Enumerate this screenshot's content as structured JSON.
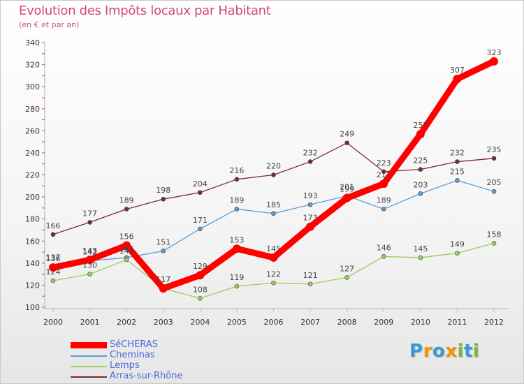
{
  "header": {
    "title": "Evolution des Impôts locaux par Habitant",
    "subtitle": "(en € et par an)"
  },
  "logo": {
    "letters": [
      "P",
      "r",
      "o",
      "x",
      "i",
      "t",
      "i"
    ],
    "colors": [
      "#3a9ad9",
      "#f29400",
      "#3a9ad9",
      "#f29400",
      "#7cb82f",
      "#3a9ad9",
      "#7cb82f"
    ]
  },
  "chart_data": {
    "type": "line",
    "title": "Evolution des Impôts locaux par Habitant",
    "subtitle": "(en € et par an)",
    "xlabel": "",
    "ylabel": "",
    "ylim": [
      100,
      340
    ],
    "y_ticks": [
      100,
      120,
      140,
      160,
      180,
      200,
      220,
      240,
      260,
      280,
      300,
      320,
      340
    ],
    "grid": false,
    "legend_position": "bottom-left",
    "x": [
      "2000",
      "2001",
      "2002",
      "2003",
      "2004",
      "2005",
      "2006",
      "2007",
      "2008",
      "2009",
      "2010",
      "2011",
      "2012"
    ],
    "series": [
      {
        "name": "Arras-sur-Rhône",
        "color": "#7a2a33",
        "values": [
          166,
          177,
          189,
          198,
          204,
          216,
          220,
          232,
          249,
          223,
          225,
          232,
          235
        ]
      },
      {
        "name": "Cheminas",
        "color": "#5b9bd5",
        "values": [
          137,
          142,
          145,
          151,
          171,
          189,
          185,
          193,
          201,
          189,
          203,
          215,
          205
        ]
      },
      {
        "name": "Lemps",
        "color": "#9acd5b",
        "values": [
          124,
          130,
          143,
          117,
          108,
          119,
          122,
          121,
          127,
          146,
          145,
          149,
          158
        ]
      },
      {
        "name": "SéCHERAS",
        "color": "#ff0000",
        "values": [
          136,
          143,
          156,
          117,
          129,
          153,
          145,
          173,
          199,
          212,
          257,
          307,
          323
        ]
      }
    ],
    "legend_order": [
      "SéCHERAS",
      "Cheminas",
      "Lemps",
      "Arras-sur-Rhône"
    ]
  }
}
